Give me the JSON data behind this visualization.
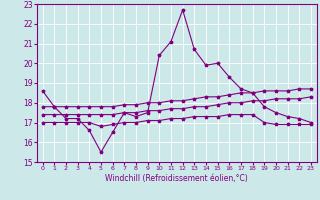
{
  "xlabel": "Windchill (Refroidissement éolien,°C)",
  "background_color": "#cce8e8",
  "line_color": "#800080",
  "grid_color": "#ffffff",
  "xlim": [
    -0.5,
    23.5
  ],
  "ylim": [
    15,
    23
  ],
  "yticks": [
    15,
    16,
    17,
    18,
    19,
    20,
    21,
    22,
    23
  ],
  "xticks": [
    0,
    1,
    2,
    3,
    4,
    5,
    6,
    7,
    8,
    9,
    10,
    11,
    12,
    13,
    14,
    15,
    16,
    17,
    18,
    19,
    20,
    21,
    22,
    23
  ],
  "series1": [
    18.6,
    17.8,
    17.2,
    17.2,
    16.6,
    15.5,
    16.5,
    17.5,
    17.3,
    17.5,
    20.4,
    21.1,
    22.7,
    20.7,
    19.9,
    20.0,
    19.3,
    18.7,
    18.5,
    17.8,
    17.5,
    17.3,
    17.2,
    17.0
  ],
  "series2": [
    17.8,
    17.8,
    17.8,
    17.8,
    17.8,
    17.8,
    17.8,
    17.9,
    17.9,
    18.0,
    18.0,
    18.1,
    18.1,
    18.2,
    18.3,
    18.3,
    18.4,
    18.5,
    18.5,
    18.6,
    18.6,
    18.6,
    18.7,
    18.7
  ],
  "series3": [
    17.4,
    17.4,
    17.4,
    17.4,
    17.4,
    17.4,
    17.4,
    17.5,
    17.5,
    17.6,
    17.6,
    17.7,
    17.7,
    17.8,
    17.8,
    17.9,
    18.0,
    18.0,
    18.1,
    18.1,
    18.2,
    18.2,
    18.2,
    18.3
  ],
  "series4": [
    17.0,
    17.0,
    17.0,
    17.0,
    17.0,
    16.8,
    16.9,
    17.0,
    17.0,
    17.1,
    17.1,
    17.2,
    17.2,
    17.3,
    17.3,
    17.3,
    17.4,
    17.4,
    17.4,
    17.0,
    16.9,
    16.9,
    16.9,
    16.9
  ],
  "xlabel_fontsize": 5.5,
  "tick_fontsize": 5.5,
  "xtick_fontsize": 4.5,
  "linewidth": 0.8,
  "markersize": 2.5
}
